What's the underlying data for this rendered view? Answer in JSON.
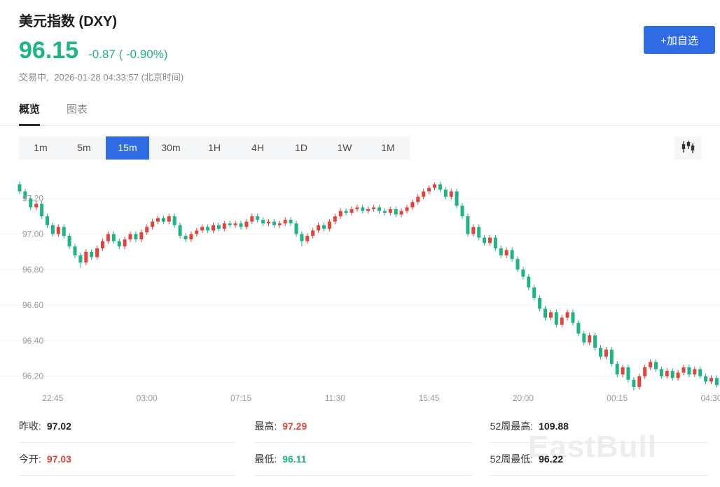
{
  "colors": {
    "accent_blue": "#2e6be4",
    "up": "#e2443b",
    "down": "#1db584",
    "text_gray": "#8a8a8a"
  },
  "header": {
    "title": "美元指数 (DXY)",
    "price": "96.15",
    "change": "-0.87 ( -0.90%)",
    "status": "交易中,",
    "timestamp": "2026-01-28 04:33:57 (北京时间)",
    "add_watchlist_label": "+加自选"
  },
  "tabs": [
    {
      "label": "概览",
      "active": true
    },
    {
      "label": "图表",
      "active": false
    }
  ],
  "timeframes": [
    {
      "label": "1m",
      "active": false
    },
    {
      "label": "5m",
      "active": false
    },
    {
      "label": "15m",
      "active": true
    },
    {
      "label": "30m",
      "active": false
    },
    {
      "label": "1H",
      "active": false
    },
    {
      "label": "4H",
      "active": false
    },
    {
      "label": "1D",
      "active": false
    },
    {
      "label": "1W",
      "active": false
    },
    {
      "label": "1M",
      "active": false
    }
  ],
  "icons": {
    "chart_type": "candlestick-chart-icon"
  },
  "stats": {
    "items": [
      {
        "label": "昨收:",
        "value": "97.02",
        "color": "#222222"
      },
      {
        "label": "最高:",
        "value": "97.29",
        "color": "#e2443b"
      },
      {
        "label": "52周最高:",
        "value": "109.88",
        "color": "#222222"
      },
      {
        "label": "今开:",
        "value": "97.03",
        "color": "#e2443b"
      },
      {
        "label": "最低:",
        "value": "96.11",
        "color": "#1db584"
      },
      {
        "label": "52周最低:",
        "value": "96.22",
        "color": "#222222"
      }
    ]
  },
  "watermark": {
    "text": "EastBull"
  },
  "chart_data": {
    "type": "candlestick",
    "title": "美元指数 (DXY) 15m",
    "interval": "15m",
    "ylim": [
      96.12,
      97.38
    ],
    "y_ticks": [
      97.2,
      97.0,
      96.8,
      96.6,
      96.4,
      96.2
    ],
    "x_ticks": [
      "22:45",
      "03:00",
      "07:15",
      "11:30",
      "15:45",
      "20:00",
      "00:15",
      "04:30"
    ],
    "x_tick_indices": [
      6,
      23,
      40,
      57,
      74,
      91,
      108,
      125
    ],
    "up_color": "#e2443b",
    "down_color": "#1db584",
    "x0": 28,
    "step": 7.9,
    "wick": 0.015,
    "first_open": 97.28,
    "closes": [
      97.24,
      97.2,
      97.15,
      97.17,
      97.1,
      97.05,
      97.0,
      97.04,
      96.99,
      96.93,
      96.88,
      96.84,
      96.9,
      96.87,
      96.92,
      96.96,
      97.0,
      96.96,
      96.93,
      96.97,
      97.0,
      96.97,
      97.01,
      97.04,
      97.07,
      97.09,
      97.07,
      97.1,
      97.05,
      96.99,
      96.97,
      97.0,
      97.02,
      97.04,
      97.02,
      97.05,
      97.03,
      97.06,
      97.05,
      97.06,
      97.04,
      97.07,
      97.1,
      97.08,
      97.06,
      97.07,
      97.05,
      97.06,
      97.08,
      97.06,
      97.0,
      96.96,
      96.99,
      97.02,
      97.05,
      97.03,
      97.07,
      97.1,
      97.13,
      97.12,
      97.14,
      97.15,
      97.13,
      97.14,
      97.15,
      97.13,
      97.12,
      97.14,
      97.11,
      97.13,
      97.15,
      97.18,
      97.21,
      97.24,
      97.26,
      97.28,
      97.25,
      97.21,
      97.24,
      97.16,
      97.1,
      97.0,
      97.04,
      96.98,
      96.95,
      96.98,
      96.92,
      96.88,
      96.91,
      96.86,
      96.8,
      96.76,
      96.7,
      96.64,
      96.58,
      96.53,
      96.56,
      96.49,
      96.53,
      96.56,
      96.5,
      96.44,
      96.39,
      96.43,
      96.36,
      96.31,
      96.35,
      96.27,
      96.21,
      96.25,
      96.18,
      96.14,
      96.2,
      96.25,
      96.28,
      96.24,
      96.2,
      96.23,
      96.19,
      96.22,
      96.25,
      96.21,
      96.24,
      96.2,
      96.17,
      96.19,
      96.15
    ],
    "overrides": {
      "11": {
        "low": 96.81
      },
      "51": {
        "low": 96.93
      },
      "75": {
        "high": 97.29
      },
      "111": {
        "low": 96.11
      }
    },
    "day_high": 97.29,
    "day_low": 96.11,
    "prev_close": 97.02,
    "open": 97.03,
    "week52_high": 109.88,
    "week52_low": 96.22,
    "last": 96.15
  }
}
